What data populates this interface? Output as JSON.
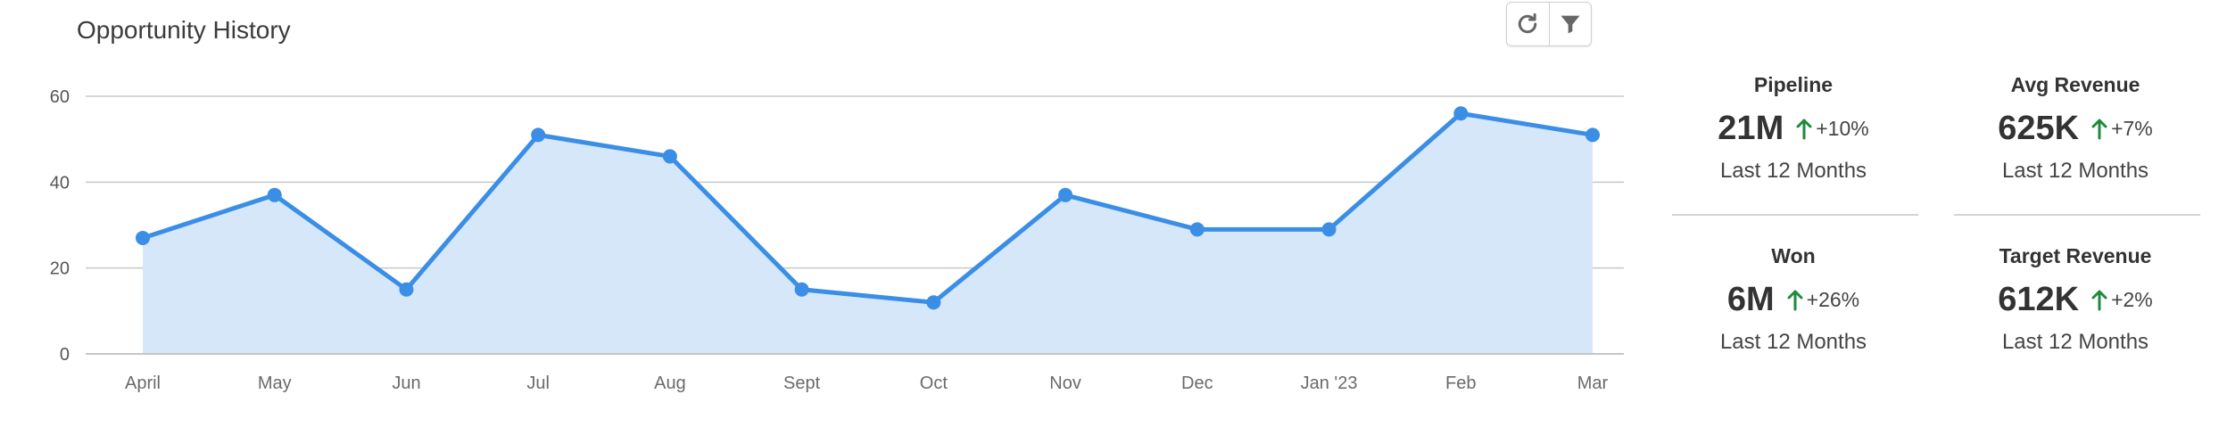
{
  "header": {
    "title": "Opportunity History"
  },
  "toolbar": {
    "refresh_icon": "refresh-icon",
    "filter_icon": "filter-icon"
  },
  "colors": {
    "line": "#3a8ee6",
    "area": "#d5e7f8",
    "up_arrow": "#1f8a3c",
    "grid": "#c8c8c8"
  },
  "chart_data": {
    "type": "area",
    "title": "Opportunity History",
    "categories": [
      "April",
      "May",
      "Jun",
      "Jul",
      "Aug",
      "Sept",
      "Oct",
      "Nov",
      "Dec",
      "Jan '23",
      "Feb",
      "Mar"
    ],
    "series": [
      {
        "values": [
          27,
          37,
          15,
          51,
          46,
          15,
          12,
          37,
          29,
          29,
          56,
          51
        ]
      }
    ],
    "yticks": [
      0,
      20,
      40,
      60
    ],
    "ylim": [
      0,
      60
    ],
    "grid": true,
    "markers": true
  },
  "kpis": [
    {
      "label": "Pipeline",
      "value": "21M",
      "change": "+10%",
      "period": "Last 12 Months"
    },
    {
      "label": "Avg Revenue",
      "value": "625K",
      "change": "+7%",
      "period": "Last 12 Months"
    },
    {
      "label": "Won",
      "value": "6M",
      "change": "+26%",
      "period": "Last 12 Months"
    },
    {
      "label": "Target Revenue",
      "value": "612K",
      "change": "+2%",
      "period": "Last 12 Months"
    }
  ]
}
